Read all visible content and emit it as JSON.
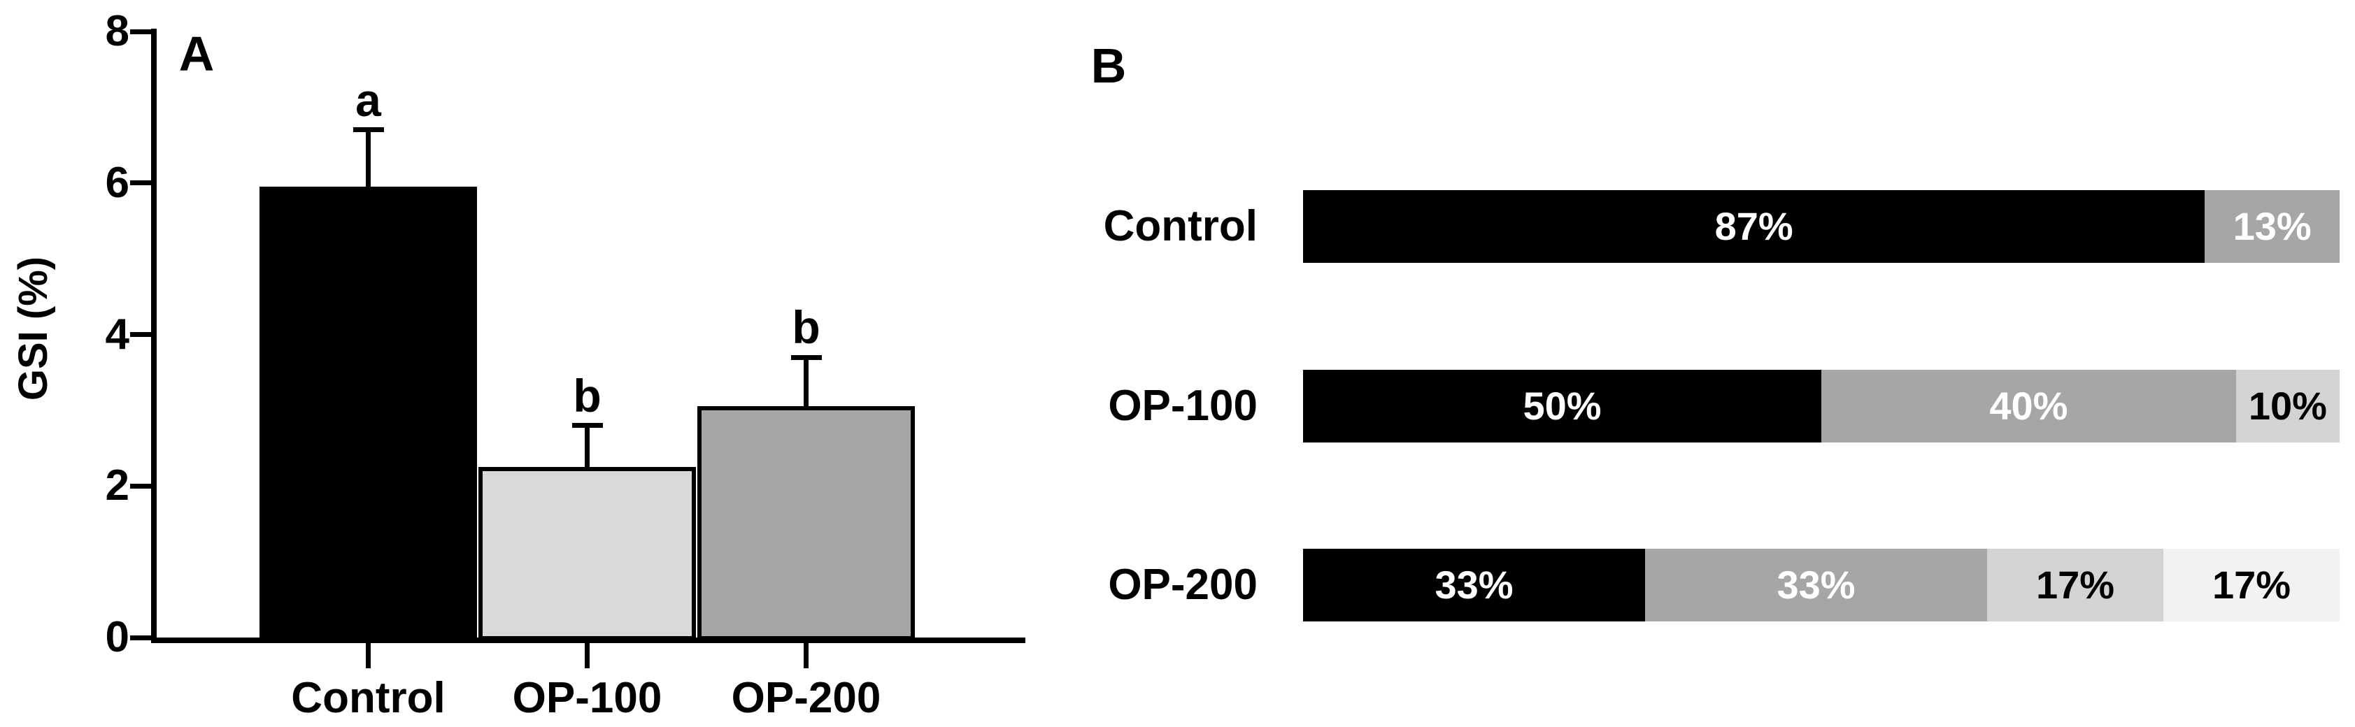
{
  "chart_data": [
    {
      "id": "panel-A",
      "type": "bar",
      "panel_letter": "A",
      "title": "",
      "xlabel": "",
      "ylabel": "GSI (%)",
      "categories": [
        "Control",
        "OP-100",
        "OP-200"
      ],
      "values": [
        5.95,
        2.25,
        3.05
      ],
      "error_plus": [
        0.75,
        0.55,
        0.65
      ],
      "sig_letters": [
        "a",
        "b",
        "b"
      ],
      "bar_colors": [
        "#000000",
        "#d9d9d9",
        "#a6a6a6"
      ],
      "bar_outline_color": "#000000",
      "yticks": [
        0,
        2,
        4,
        6,
        8
      ],
      "ylim": [
        0,
        8
      ],
      "grid": false,
      "legend": null
    },
    {
      "id": "panel-B",
      "type": "stacked-bar-horizontal",
      "panel_letter": "B",
      "title": "",
      "xlabel": "",
      "ylabel": "",
      "categories": [
        "Control",
        "OP-100",
        "OP-200"
      ],
      "xlim": [
        0,
        100
      ],
      "axes_visible": false,
      "grid": false,
      "legend": null,
      "rows": [
        {
          "label": "Control",
          "segments": [
            {
              "value": 87,
              "text": "87%",
              "color": "#000000",
              "text_color": "#ffffff"
            },
            {
              "value": 13,
              "text": "13%",
              "color": "#a6a6a6",
              "text_color": "#ffffff"
            }
          ]
        },
        {
          "label": "OP-100",
          "segments": [
            {
              "value": 50,
              "text": "50%",
              "color": "#000000",
              "text_color": "#ffffff"
            },
            {
              "value": 40,
              "text": "40%",
              "color": "#a6a6a6",
              "text_color": "#ffffff"
            },
            {
              "value": 10,
              "text": "10%",
              "color": "#d3d3d3",
              "text_color": "#000000"
            }
          ]
        },
        {
          "label": "OP-200",
          "segments": [
            {
              "value": 33,
              "text": "33%",
              "color": "#000000",
              "text_color": "#ffffff"
            },
            {
              "value": 33,
              "text": "33%",
              "color": "#a6a6a6",
              "text_color": "#ffffff"
            },
            {
              "value": 17,
              "text": "17%",
              "color": "#d3d3d3",
              "text_color": "#000000"
            },
            {
              "value": 17,
              "text": "17%",
              "color": "#f2f2f2",
              "text_color": "#000000"
            }
          ]
        }
      ]
    }
  ],
  "colors": {
    "black": "#000000",
    "medium_gray": "#a6a6a6",
    "light_gray": "#d3d3d3",
    "lighter_gray": "#d9d9d9",
    "very_light_gray": "#f2f2f2",
    "background": "#ffffff"
  }
}
